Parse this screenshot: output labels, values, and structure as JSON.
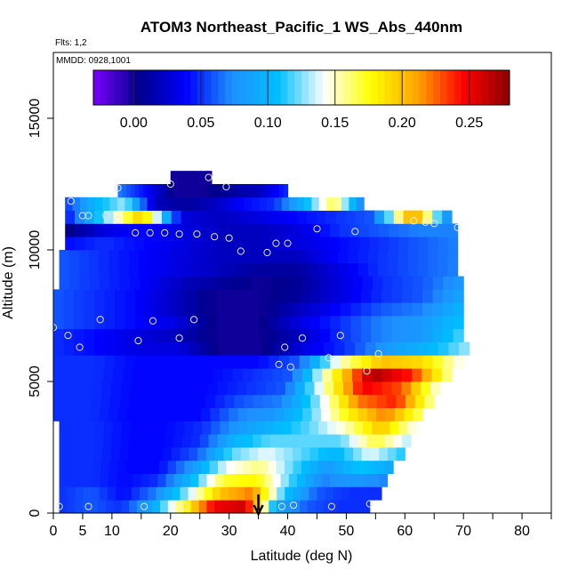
{
  "chart_data": {
    "type": "heatmap",
    "title": "ATOM3 Northeast_Pacific_1 WS_Abs_440nm",
    "subtitle_lines": [
      "Flts: 1,2",
      "MMDD: 0928,1001"
    ],
    "xlabel": "Latitude (deg N)",
    "ylabel": "Altitude (m)",
    "xlim": [
      0,
      85
    ],
    "ylim": [
      0,
      17500
    ],
    "x_ticks": [
      0,
      5,
      10,
      20,
      30,
      40,
      50,
      60,
      70,
      80
    ],
    "x_minor_ticks": [
      15,
      25,
      35,
      45,
      55,
      65,
      75,
      85
    ],
    "y_ticks": [
      0,
      5000,
      10000,
      15000
    ],
    "colorbar": {
      "range": [
        -0.03,
        0.28
      ],
      "ticks": [
        "0.00",
        "0.05",
        "0.10",
        "0.15",
        "0.20",
        "0.25"
      ],
      "tick_values": [
        0.0,
        0.05,
        0.1,
        0.15,
        0.2,
        0.25
      ],
      "colors": [
        "#7a00ff",
        "#00008b",
        "#0000ff",
        "#1e90ff",
        "#00bfff",
        "#ffffff",
        "#ffff00",
        "#ffa500",
        "#ff0000",
        "#8b0000"
      ]
    },
    "altitude_bands": [
      {
        "alt": [
          0,
          500
        ],
        "lat": [
          1,
          54
        ],
        "values": [
          0.05,
          0.06,
          0.05,
          0.09,
          0.17,
          0.25,
          0.26,
          0.09,
          0.06,
          0.05,
          0.05
        ]
      },
      {
        "alt": [
          500,
          1000
        ],
        "lat": [
          1,
          56
        ],
        "values": [
          0.05,
          0.06,
          0.04,
          0.07,
          0.13,
          0.2,
          0.22,
          0.11,
          0.06,
          0.05,
          0.05
        ]
      },
      {
        "alt": [
          1000,
          1500
        ],
        "lat": [
          1,
          57
        ],
        "values": [
          0.05,
          0.05,
          0.04,
          0.05,
          0.1,
          0.17,
          0.18,
          0.12,
          0.07,
          0.08,
          0.07
        ]
      },
      {
        "alt": [
          1500,
          2000
        ],
        "lat": [
          1,
          58
        ],
        "values": [
          0.05,
          0.05,
          0.04,
          0.04,
          0.08,
          0.14,
          0.16,
          0.12,
          0.08,
          0.11,
          0.09
        ]
      },
      {
        "alt": [
          2000,
          2500
        ],
        "lat": [
          1,
          60
        ],
        "values": [
          0.05,
          0.05,
          0.04,
          0.04,
          0.06,
          0.12,
          0.14,
          0.12,
          0.1,
          0.14,
          0.11
        ]
      },
      {
        "alt": [
          2500,
          3000
        ],
        "lat": [
          1,
          61
        ],
        "values": [
          0.05,
          0.05,
          0.04,
          0.04,
          0.05,
          0.1,
          0.12,
          0.12,
          0.12,
          0.17,
          0.13
        ]
      },
      {
        "alt": [
          3000,
          3500
        ],
        "lat": [
          1,
          62
        ],
        "values": [
          0.05,
          0.05,
          0.04,
          0.04,
          0.05,
          0.08,
          0.1,
          0.12,
          0.15,
          0.2,
          0.14
        ]
      },
      {
        "alt": [
          3500,
          4000
        ],
        "lat": [
          0,
          63
        ],
        "values": [
          0.05,
          0.05,
          0.04,
          0.04,
          0.04,
          0.07,
          0.08,
          0.12,
          0.18,
          0.22,
          0.16
        ]
      },
      {
        "alt": [
          4000,
          4500
        ],
        "lat": [
          0,
          65
        ],
        "values": [
          0.05,
          0.05,
          0.04,
          0.04,
          0.04,
          0.06,
          0.07,
          0.13,
          0.22,
          0.24,
          0.15
        ]
      },
      {
        "alt": [
          4500,
          5000
        ],
        "lat": [
          0,
          66
        ],
        "values": [
          0.05,
          0.05,
          0.04,
          0.04,
          0.04,
          0.05,
          0.06,
          0.15,
          0.25,
          0.23,
          0.14
        ]
      },
      {
        "alt": [
          5000,
          5500
        ],
        "lat": [
          0,
          68
        ],
        "values": [
          0.05,
          0.05,
          0.04,
          0.04,
          0.04,
          0.05,
          0.06,
          0.17,
          0.27,
          0.24,
          0.15
        ]
      },
      {
        "alt": [
          5500,
          6000
        ],
        "lat": [
          0,
          70
        ],
        "values": [
          0.05,
          0.05,
          0.04,
          0.04,
          0.04,
          0.04,
          0.06,
          0.15,
          0.2,
          0.19,
          0.14
        ]
      },
      {
        "alt": [
          6000,
          6500
        ],
        "lat": [
          0,
          71
        ],
        "values": [
          0.05,
          0.04,
          0.03,
          0.03,
          0.0,
          0.0,
          0.03,
          0.05,
          0.08,
          0.1,
          0.13
        ]
      },
      {
        "alt": [
          6500,
          7000
        ],
        "lat": [
          0,
          70
        ],
        "values": [
          0.05,
          0.04,
          0.03,
          0.02,
          0.0,
          0.0,
          0.02,
          0.05,
          0.07,
          0.08,
          0.12
        ]
      },
      {
        "alt": [
          7000,
          7500
        ],
        "lat": [
          0,
          70
        ],
        "values": [
          0.06,
          0.05,
          0.04,
          0.03,
          0.0,
          0.0,
          0.03,
          0.05,
          0.07,
          0.08,
          0.11
        ]
      },
      {
        "alt": [
          7500,
          8000
        ],
        "lat": [
          0,
          70
        ],
        "values": [
          0.06,
          0.05,
          0.04,
          0.02,
          0.0,
          0.0,
          0.02,
          0.04,
          0.06,
          0.07,
          0.1
        ]
      },
      {
        "alt": [
          8000,
          8500
        ],
        "lat": [
          0,
          70
        ],
        "values": [
          0.06,
          0.05,
          0.04,
          0.02,
          0.0,
          0.0,
          0.01,
          0.03,
          0.05,
          0.06,
          0.09
        ]
      },
      {
        "alt": [
          8500,
          9000
        ],
        "lat": [
          1,
          70
        ],
        "values": [
          0.06,
          0.05,
          0.04,
          0.02,
          0.01,
          0.0,
          0.01,
          0.03,
          0.05,
          0.06,
          0.08
        ]
      },
      {
        "alt": [
          9000,
          9500
        ],
        "lat": [
          1,
          69
        ],
        "values": [
          0.06,
          0.05,
          0.04,
          0.03,
          0.02,
          0.01,
          0.01,
          0.03,
          0.05,
          0.06,
          0.07
        ]
      },
      {
        "alt": [
          9500,
          10000
        ],
        "lat": [
          1,
          69
        ],
        "values": [
          0.06,
          0.05,
          0.04,
          0.03,
          0.02,
          0.02,
          0.02,
          0.04,
          0.05,
          0.06,
          0.07
        ]
      },
      {
        "alt": [
          10000,
          10500
        ],
        "lat": [
          2,
          69
        ],
        "values": [
          0.04,
          0.05,
          0.04,
          0.03,
          0.02,
          0.02,
          0.03,
          0.04,
          0.05,
          0.06,
          0.07
        ]
      },
      {
        "alt": [
          10500,
          11000
        ],
        "lat": [
          2,
          69
        ],
        "values": [
          0.0,
          0.03,
          0.04,
          0.03,
          0.02,
          0.02,
          0.03,
          0.05,
          0.06,
          0.07,
          0.07
        ]
      },
      {
        "alt": [
          11000,
          11500
        ],
        "lat": [
          2,
          68
        ],
        "values": [
          0.04,
          0.12,
          0.2,
          0.03,
          0.02,
          0.03,
          0.04,
          0.05,
          0.06,
          0.22,
          0.06
        ]
      },
      {
        "alt": [
          11500,
          12000
        ],
        "lat": [
          2,
          53
        ],
        "values": [
          0.05,
          0.1,
          0.13,
          0.02,
          0.01,
          0.02,
          0.04,
          0.05,
          0.1,
          0.17,
          0.06
        ]
      },
      {
        "alt": [
          12000,
          12500
        ],
        "lat": [
          11,
          40
        ],
        "values": [
          0.07,
          0.04,
          0.0,
          0.0,
          0.01,
          0.02,
          0.05
        ]
      },
      {
        "alt": [
          12500,
          13000
        ],
        "lat": [
          20,
          27
        ],
        "values": [
          0.0,
          0.0,
          0.0
        ]
      }
    ],
    "sample_points": [
      [
        1,
        250
      ],
      [
        6,
        250
      ],
      [
        15.5,
        250
      ],
      [
        22.5,
        250
      ],
      [
        39,
        250
      ],
      [
        41,
        300
      ],
      [
        47.5,
        250
      ],
      [
        54,
        350
      ],
      [
        11,
        11150
      ],
      [
        5,
        11300
      ],
      [
        9,
        11300
      ],
      [
        6,
        11300
      ],
      [
        3,
        11850
      ],
      [
        11,
        12350
      ],
      [
        20,
        12500
      ],
      [
        26.5,
        12750
      ],
      [
        29.5,
        12400
      ],
      [
        14,
        10650
      ],
      [
        16.5,
        10650
      ],
      [
        19,
        10650
      ],
      [
        21.5,
        10600
      ],
      [
        24.5,
        10600
      ],
      [
        27.5,
        10500
      ],
      [
        30,
        10450
      ],
      [
        32,
        9950
      ],
      [
        36.5,
        9900
      ],
      [
        38,
        10250
      ],
      [
        40,
        10250
      ],
      [
        45,
        10800
      ],
      [
        51.5,
        10700
      ],
      [
        59,
        11150
      ],
      [
        61.5,
        11100
      ],
      [
        63.5,
        11050
      ],
      [
        65,
        11000
      ],
      [
        69,
        10850
      ],
      [
        8,
        7350
      ],
      [
        17,
        7300
      ],
      [
        24,
        7350
      ],
      [
        0,
        7050
      ],
      [
        2.5,
        6750
      ],
      [
        4.5,
        6300
      ],
      [
        14.5,
        6550
      ],
      [
        21.5,
        6650
      ],
      [
        39.5,
        6300
      ],
      [
        42.5,
        6650
      ],
      [
        49,
        6750
      ],
      [
        47,
        5900
      ],
      [
        53.5,
        5400
      ],
      [
        55.5,
        6050
      ],
      [
        38.5,
        5650
      ],
      [
        40.5,
        5550
      ]
    ],
    "arrow_latitude": 35
  }
}
